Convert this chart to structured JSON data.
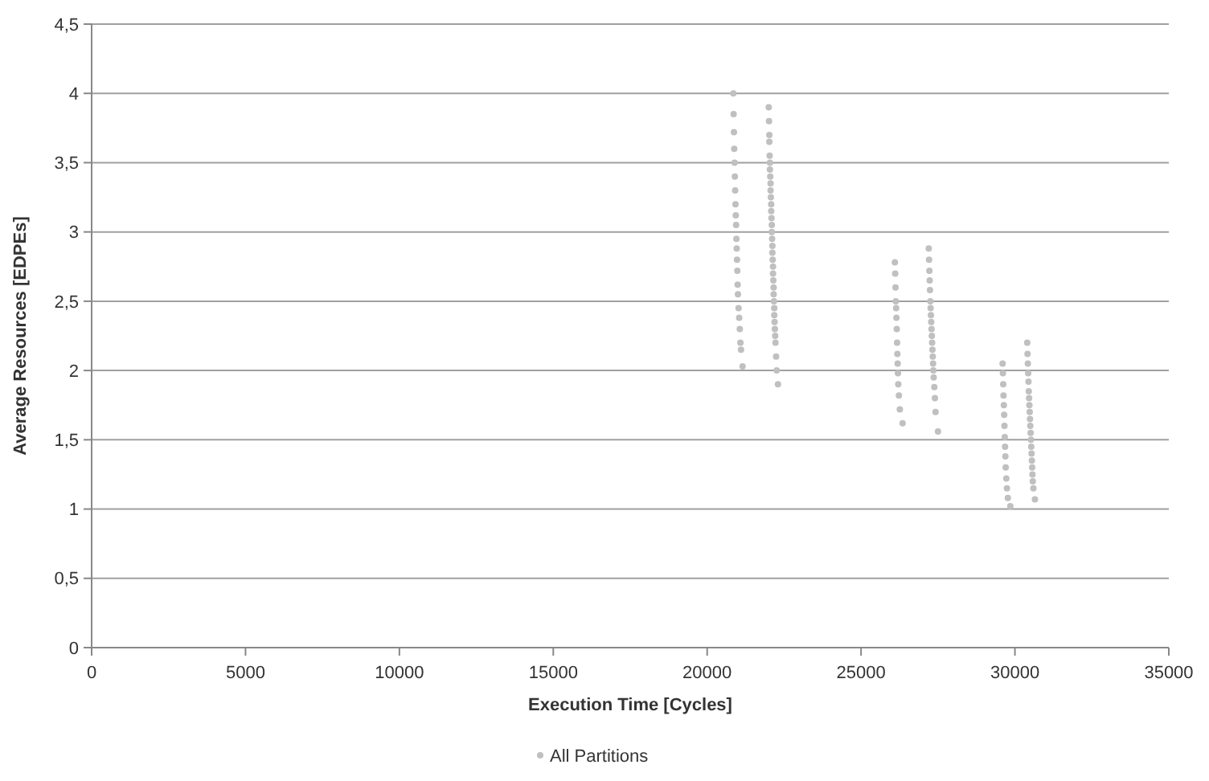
{
  "chart_data": {
    "type": "scatter",
    "xlabel": "Execution Time [Cycles]",
    "ylabel": "Average Resources [EDPEs]",
    "xlim": [
      0,
      35000
    ],
    "xticks": [
      0,
      5000,
      10000,
      15000,
      20000,
      25000,
      30000,
      35000
    ],
    "ylim": [
      0,
      4.5
    ],
    "yticks": [
      0,
      {
        "value": 0.5,
        "label": "0,5"
      },
      1,
      {
        "value": 1.5,
        "label": "1,5"
      },
      2,
      {
        "value": 2.5,
        "label": "2,5"
      },
      3,
      {
        "value": 3.5,
        "label": "3,5"
      },
      4,
      {
        "value": 4.5,
        "label": "4,5"
      }
    ],
    "grid": "y",
    "legend": "bottom",
    "marker": "circle",
    "series": [
      {
        "name": "All Partitions",
        "color": "#c0c0c0",
        "x": [
          20850,
          20860,
          20870,
          20880,
          20890,
          20900,
          20910,
          20920,
          20930,
          20940,
          20950,
          20960,
          20970,
          20980,
          20990,
          21000,
          21020,
          21040,
          21060,
          21080,
          21100,
          21150,
          22000,
          22010,
          22020,
          22020,
          22030,
          22040,
          22040,
          22050,
          22060,
          22060,
          22070,
          22080,
          22080,
          22090,
          22100,
          22100,
          22110,
          22120,
          22120,
          22130,
          22140,
          22140,
          22150,
          22160,
          22160,
          22170,
          22180,
          22180,
          22190,
          22200,
          22210,
          22220,
          22240,
          22260,
          22300,
          26100,
          26110,
          26120,
          26130,
          26140,
          26150,
          26160,
          26170,
          26180,
          26190,
          26200,
          26210,
          26230,
          26260,
          26350,
          27200,
          27210,
          27220,
          27230,
          27240,
          27250,
          27260,
          27270,
          27280,
          27290,
          27300,
          27310,
          27320,
          27330,
          27340,
          27350,
          27360,
          27380,
          27400,
          27420,
          27500,
          29600,
          29610,
          29620,
          29630,
          29640,
          29650,
          29660,
          29670,
          29680,
          29690,
          29700,
          29720,
          29740,
          29770,
          29850,
          30400,
          30410,
          30420,
          30430,
          30440,
          30450,
          30460,
          30470,
          30480,
          30490,
          30500,
          30510,
          30520,
          30530,
          30540,
          30550,
          30560,
          30570,
          30580,
          30600,
          30650
        ],
        "values": [
          4.0,
          3.85,
          3.72,
          3.6,
          3.5,
          3.4,
          3.3,
          3.2,
          3.12,
          3.05,
          2.95,
          2.88,
          2.8,
          2.72,
          2.62,
          2.55,
          2.45,
          2.38,
          2.3,
          2.2,
          2.15,
          2.03,
          3.9,
          3.8,
          3.7,
          3.65,
          3.55,
          3.5,
          3.45,
          3.4,
          3.35,
          3.3,
          3.25,
          3.2,
          3.15,
          3.1,
          3.05,
          3.0,
          2.95,
          2.9,
          2.85,
          2.8,
          2.75,
          2.7,
          2.65,
          2.6,
          2.55,
          2.5,
          2.45,
          2.4,
          2.35,
          2.3,
          2.25,
          2.2,
          2.1,
          2.0,
          1.9,
          2.78,
          2.7,
          2.6,
          2.5,
          2.45,
          2.38,
          2.3,
          2.2,
          2.12,
          2.05,
          1.98,
          1.9,
          1.82,
          1.72,
          1.62,
          2.88,
          2.8,
          2.72,
          2.65,
          2.58,
          2.5,
          2.45,
          2.4,
          2.35,
          2.3,
          2.25,
          2.2,
          2.15,
          2.1,
          2.05,
          2.0,
          1.95,
          1.88,
          1.8,
          1.7,
          1.56,
          2.05,
          1.98,
          1.9,
          1.82,
          1.75,
          1.68,
          1.6,
          1.52,
          1.45,
          1.38,
          1.3,
          1.22,
          1.15,
          1.08,
          1.02,
          2.2,
          2.12,
          2.05,
          1.98,
          1.92,
          1.85,
          1.8,
          1.75,
          1.7,
          1.65,
          1.6,
          1.55,
          1.5,
          1.45,
          1.4,
          1.35,
          1.3,
          1.25,
          1.2,
          1.15,
          1.07
        ]
      }
    ]
  }
}
